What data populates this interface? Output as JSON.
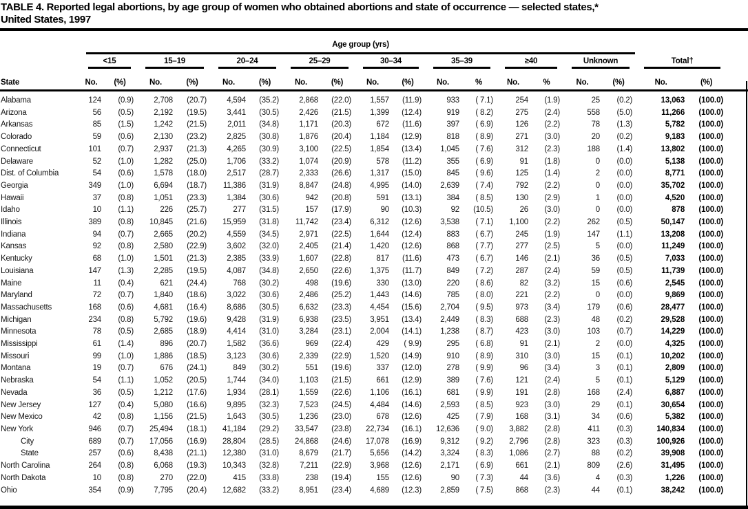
{
  "title": {
    "line1": "TABLE 4. Reported legal abortions, by age group of women who obtained abortions and state of occurrence — selected states,*",
    "line2": "United States, 1997"
  },
  "table": {
    "span_header": "Age group (yrs)",
    "state_header": "State",
    "groups": [
      {
        "label": "<15",
        "no": "No.",
        "pct": "(%)"
      },
      {
        "label": "15–19",
        "no": "No.",
        "pct": "(%)"
      },
      {
        "label": "20–24",
        "no": "No.",
        "pct": "(%)"
      },
      {
        "label": "25–29",
        "no": "No.",
        "pct": "(%)"
      },
      {
        "label": "30–34",
        "no": "No.",
        "pct": "(%)"
      },
      {
        "label": "35–39",
        "no": "No.",
        "pct": "%"
      },
      {
        "label": "≥40",
        "no": "No.",
        "pct": "%"
      },
      {
        "label": "Unknown",
        "no": "No.",
        "pct": "(%)"
      },
      {
        "label": "Total†",
        "no": "No.",
        "pct": "(%)"
      }
    ],
    "rows": [
      {
        "state": "Alabama",
        "indent": false,
        "cells": [
          "124",
          "(0.9)",
          "2,708",
          "(20.7)",
          "4,594",
          "(35.2)",
          "2,868",
          "(22.0)",
          "1,557",
          "(11.9)",
          "933",
          "( 7.1)",
          "254",
          "(1.9)",
          "25",
          "(0.2)",
          "13,063",
          "(100.0)"
        ]
      },
      {
        "state": "Arizona",
        "indent": false,
        "cells": [
          "56",
          "(0.5)",
          "2,192",
          "(19.5)",
          "3,441",
          "(30.5)",
          "2,426",
          "(21.5)",
          "1,399",
          "(12.4)",
          "919",
          "( 8.2)",
          "275",
          "(2.4)",
          "558",
          "(5.0)",
          "11,266",
          "(100.0)"
        ]
      },
      {
        "state": "Arkansas",
        "indent": false,
        "cells": [
          "85",
          "(1.5)",
          "1,242",
          "(21.5)",
          "2,011",
          "(34.8)",
          "1,171",
          "(20.3)",
          "672",
          "(11.6)",
          "397",
          "( 6.9)",
          "126",
          "(2.2)",
          "78",
          "(1.3)",
          "5,782",
          "(100.0)"
        ]
      },
      {
        "state": "Colorado",
        "indent": false,
        "cells": [
          "59",
          "(0.6)",
          "2,130",
          "(23.2)",
          "2,825",
          "(30.8)",
          "1,876",
          "(20.4)",
          "1,184",
          "(12.9)",
          "818",
          "( 8.9)",
          "271",
          "(3.0)",
          "20",
          "(0.2)",
          "9,183",
          "(100.0)"
        ]
      },
      {
        "state": "Connecticut",
        "indent": false,
        "cells": [
          "101",
          "(0.7)",
          "2,937",
          "(21.3)",
          "4,265",
          "(30.9)",
          "3,100",
          "(22.5)",
          "1,854",
          "(13.4)",
          "1,045",
          "( 7.6)",
          "312",
          "(2.3)",
          "188",
          "(1.4)",
          "13,802",
          "(100.0)"
        ]
      },
      {
        "state": "Delaware",
        "indent": false,
        "cells": [
          "52",
          "(1.0)",
          "1,282",
          "(25.0)",
          "1,706",
          "(33.2)",
          "1,074",
          "(20.9)",
          "578",
          "(11.2)",
          "355",
          "( 6.9)",
          "91",
          "(1.8)",
          "0",
          "(0.0)",
          "5,138",
          "(100.0)"
        ]
      },
      {
        "state": "Dist. of Columbia",
        "indent": false,
        "cells": [
          "54",
          "(0.6)",
          "1,578",
          "(18.0)",
          "2,517",
          "(28.7)",
          "2,333",
          "(26.6)",
          "1,317",
          "(15.0)",
          "845",
          "( 9.6)",
          "125",
          "(1.4)",
          "2",
          "(0.0)",
          "8,771",
          "(100.0)"
        ]
      },
      {
        "state": "Georgia",
        "indent": false,
        "cells": [
          "349",
          "(1.0)",
          "6,694",
          "(18.7)",
          "11,386",
          "(31.9)",
          "8,847",
          "(24.8)",
          "4,995",
          "(14.0)",
          "2,639",
          "( 7.4)",
          "792",
          "(2.2)",
          "0",
          "(0.0)",
          "35,702",
          "(100.0)"
        ]
      },
      {
        "state": "Hawaii",
        "indent": false,
        "cells": [
          "37",
          "(0.8)",
          "1,051",
          "(23.3)",
          "1,384",
          "(30.6)",
          "942",
          "(20.8)",
          "591",
          "(13.1)",
          "384",
          "( 8.5)",
          "130",
          "(2.9)",
          "1",
          "(0.0)",
          "4,520",
          "(100.0)"
        ]
      },
      {
        "state": "Idaho",
        "indent": false,
        "cells": [
          "10",
          "(1.1)",
          "226",
          "(25.7)",
          "277",
          "(31.5)",
          "157",
          "(17.9)",
          "90",
          "(10.3)",
          "92",
          "(10.5)",
          "26",
          "(3.0)",
          "0",
          "(0.0)",
          "878",
          "(100.0)"
        ]
      },
      {
        "state": "Illinois",
        "indent": false,
        "cells": [
          "389",
          "(0.8)",
          "10,845",
          "(21.6)",
          "15,959",
          "(31.8)",
          "11,742",
          "(23.4)",
          "6,312",
          "(12.6)",
          "3,538",
          "( 7.1)",
          "1,100",
          "(2.2)",
          "262",
          "(0.5)",
          "50,147",
          "(100.0)"
        ]
      },
      {
        "state": "Indiana",
        "indent": false,
        "cells": [
          "94",
          "(0.7)",
          "2,665",
          "(20.2)",
          "4,559",
          "(34.5)",
          "2,971",
          "(22.5)",
          "1,644",
          "(12.4)",
          "883",
          "( 6.7)",
          "245",
          "(1.9)",
          "147",
          "(1.1)",
          "13,208",
          "(100.0)"
        ]
      },
      {
        "state": "Kansas",
        "indent": false,
        "cells": [
          "92",
          "(0.8)",
          "2,580",
          "(22.9)",
          "3,602",
          "(32.0)",
          "2,405",
          "(21.4)",
          "1,420",
          "(12.6)",
          "868",
          "( 7.7)",
          "277",
          "(2.5)",
          "5",
          "(0.0)",
          "11,249",
          "(100.0)"
        ]
      },
      {
        "state": "Kentucky",
        "indent": false,
        "cells": [
          "68",
          "(1.0)",
          "1,501",
          "(21.3)",
          "2,385",
          "(33.9)",
          "1,607",
          "(22.8)",
          "817",
          "(11.6)",
          "473",
          "( 6.7)",
          "146",
          "(2.1)",
          "36",
          "(0.5)",
          "7,033",
          "(100.0)"
        ]
      },
      {
        "state": "Louisiana",
        "indent": false,
        "cells": [
          "147",
          "(1.3)",
          "2,285",
          "(19.5)",
          "4,087",
          "(34.8)",
          "2,650",
          "(22.6)",
          "1,375",
          "(11.7)",
          "849",
          "( 7.2)",
          "287",
          "(2.4)",
          "59",
          "(0.5)",
          "11,739",
          "(100.0)"
        ]
      },
      {
        "state": "Maine",
        "indent": false,
        "cells": [
          "11",
          "(0.4)",
          "621",
          "(24.4)",
          "768",
          "(30.2)",
          "498",
          "(19.6)",
          "330",
          "(13.0)",
          "220",
          "( 8.6)",
          "82",
          "(3.2)",
          "15",
          "(0.6)",
          "2,545",
          "(100.0)"
        ]
      },
      {
        "state": "Maryland",
        "indent": false,
        "cells": [
          "72",
          "(0.7)",
          "1,840",
          "(18.6)",
          "3,022",
          "(30.6)",
          "2,486",
          "(25.2)",
          "1,443",
          "(14.6)",
          "785",
          "( 8.0)",
          "221",
          "(2.2)",
          "0",
          "(0.0)",
          "9,869",
          "(100.0)"
        ]
      },
      {
        "state": "Massachusetts",
        "indent": false,
        "cells": [
          "168",
          "(0.6)",
          "4,681",
          "(16.4)",
          "8,686",
          "(30.5)",
          "6,632",
          "(23.3)",
          "4,454",
          "(15.6)",
          "2,704",
          "( 9.5)",
          "973",
          "(3.4)",
          "179",
          "(0.6)",
          "28,477",
          "(100.0)"
        ]
      },
      {
        "state": "Michigan",
        "indent": false,
        "cells": [
          "234",
          "(0.8)",
          "5,792",
          "(19.6)",
          "9,428",
          "(31.9)",
          "6,938",
          "(23.5)",
          "3,951",
          "(13.4)",
          "2,449",
          "( 8.3)",
          "688",
          "(2.3)",
          "48",
          "(0.2)",
          "29,528",
          "(100.0)"
        ]
      },
      {
        "state": "Minnesota",
        "indent": false,
        "cells": [
          "78",
          "(0.5)",
          "2,685",
          "(18.9)",
          "4,414",
          "(31.0)",
          "3,284",
          "(23.1)",
          "2,004",
          "(14.1)",
          "1,238",
          "( 8.7)",
          "423",
          "(3.0)",
          "103",
          "(0.7)",
          "14,229",
          "(100.0)"
        ]
      },
      {
        "state": "Mississippi",
        "indent": false,
        "cells": [
          "61",
          "(1.4)",
          "896",
          "(20.7)",
          "1,582",
          "(36.6)",
          "969",
          "(22.4)",
          "429",
          "( 9.9)",
          "295",
          "( 6.8)",
          "91",
          "(2.1)",
          "2",
          "(0.0)",
          "4,325",
          "(100.0)"
        ]
      },
      {
        "state": "Missouri",
        "indent": false,
        "cells": [
          "99",
          "(1.0)",
          "1,886",
          "(18.5)",
          "3,123",
          "(30.6)",
          "2,339",
          "(22.9)",
          "1,520",
          "(14.9)",
          "910",
          "( 8.9)",
          "310",
          "(3.0)",
          "15",
          "(0.1)",
          "10,202",
          "(100.0)"
        ]
      },
      {
        "state": "Montana",
        "indent": false,
        "cells": [
          "19",
          "(0.7)",
          "676",
          "(24.1)",
          "849",
          "(30.2)",
          "551",
          "(19.6)",
          "337",
          "(12.0)",
          "278",
          "( 9.9)",
          "96",
          "(3.4)",
          "3",
          "(0.1)",
          "2,809",
          "(100.0)"
        ]
      },
      {
        "state": "Nebraska",
        "indent": false,
        "cells": [
          "54",
          "(1.1)",
          "1,052",
          "(20.5)",
          "1,744",
          "(34.0)",
          "1,103",
          "(21.5)",
          "661",
          "(12.9)",
          "389",
          "( 7.6)",
          "121",
          "(2.4)",
          "5",
          "(0.1)",
          "5,129",
          "(100.0)"
        ]
      },
      {
        "state": "Nevada",
        "indent": false,
        "cells": [
          "36",
          "(0.5)",
          "1,212",
          "(17.6)",
          "1,934",
          "(28.1)",
          "1,559",
          "(22.6)",
          "1,106",
          "(16.1)",
          "681",
          "( 9.9)",
          "191",
          "(2.8)",
          "168",
          "(2.4)",
          "6,887",
          "(100.0)"
        ]
      },
      {
        "state": "New Jersey",
        "indent": false,
        "cells": [
          "127",
          "(0.4)",
          "5,080",
          "(16.6)",
          "9,895",
          "(32.3)",
          "7,523",
          "(24.5)",
          "4,484",
          "(14.6)",
          "2,593",
          "( 8.5)",
          "923",
          "(3.0)",
          "29",
          "(0.1)",
          "30,654",
          "(100.0)"
        ]
      },
      {
        "state": "New Mexico",
        "indent": false,
        "cells": [
          "42",
          "(0.8)",
          "1,156",
          "(21.5)",
          "1,643",
          "(30.5)",
          "1,236",
          "(23.0)",
          "678",
          "(12.6)",
          "425",
          "( 7.9)",
          "168",
          "(3.1)",
          "34",
          "(0.6)",
          "5,382",
          "(100.0)"
        ]
      },
      {
        "state": "New York",
        "indent": false,
        "cells": [
          "946",
          "(0.7)",
          "25,494",
          "(18.1)",
          "41,184",
          "(29.2)",
          "33,547",
          "(23.8)",
          "22,734",
          "(16.1)",
          "12,636",
          "( 9.0)",
          "3,882",
          "(2.8)",
          "411",
          "(0.3)",
          "140,834",
          "(100.0)"
        ]
      },
      {
        "state": "City",
        "indent": true,
        "cells": [
          "689",
          "(0.7)",
          "17,056",
          "(16.9)",
          "28,804",
          "(28.5)",
          "24,868",
          "(24.6)",
          "17,078",
          "(16.9)",
          "9,312",
          "( 9.2)",
          "2,796",
          "(2.8)",
          "323",
          "(0.3)",
          "100,926",
          "(100.0)"
        ]
      },
      {
        "state": "State",
        "indent": true,
        "cells": [
          "257",
          "(0.6)",
          "8,438",
          "(21.1)",
          "12,380",
          "(31.0)",
          "8,679",
          "(21.7)",
          "5,656",
          "(14.2)",
          "3,324",
          "( 8.3)",
          "1,086",
          "(2.7)",
          "88",
          "(0.2)",
          "39,908",
          "(100.0)"
        ]
      },
      {
        "state": "North Carolina",
        "indent": false,
        "cells": [
          "264",
          "(0.8)",
          "6,068",
          "(19.3)",
          "10,343",
          "(32.8)",
          "7,211",
          "(22.9)",
          "3,968",
          "(12.6)",
          "2,171",
          "( 6.9)",
          "661",
          "(2.1)",
          "809",
          "(2.6)",
          "31,495",
          "(100.0)"
        ]
      },
      {
        "state": "North Dakota",
        "indent": false,
        "cells": [
          "10",
          "(0.8)",
          "270",
          "(22.0)",
          "415",
          "(33.8)",
          "238",
          "(19.4)",
          "155",
          "(12.6)",
          "90",
          "( 7.3)",
          "44",
          "(3.6)",
          "4",
          "(0.3)",
          "1,226",
          "(100.0)"
        ]
      },
      {
        "state": "Ohio",
        "indent": false,
        "cells": [
          "354",
          "(0.9)",
          "7,795",
          "(20.4)",
          "12,682",
          "(33.2)",
          "8,951",
          "(23.4)",
          "4,689",
          "(12.3)",
          "2,859",
          "( 7.5)",
          "868",
          "(2.3)",
          "44",
          "(0.1)",
          "38,242",
          "(100.0)"
        ]
      }
    ]
  }
}
